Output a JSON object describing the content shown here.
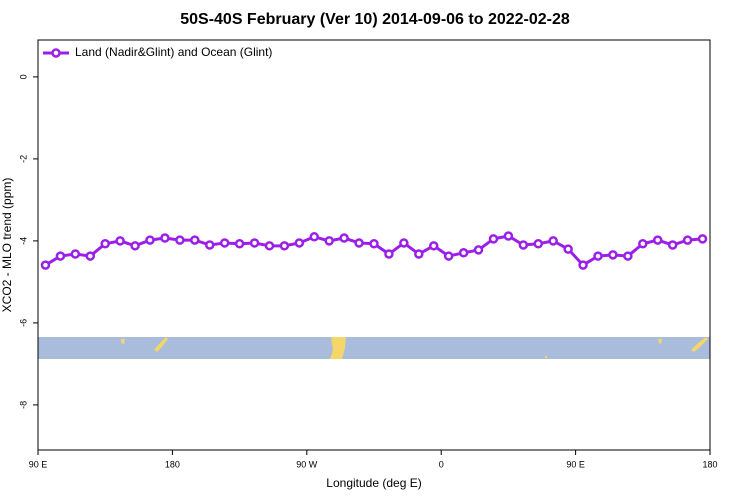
{
  "chart_data": {
    "type": "line",
    "title": "50S-40S February (Ver 10)   2014-09-06 to 2022-02-28",
    "x_label": "Longitude (deg E)",
    "y_label": "XCO2 - MLO trend (ppm)",
    "x": [
      95,
      105,
      115,
      125,
      135,
      145,
      155,
      165,
      175,
      185,
      195,
      205,
      215,
      225,
      235,
      245,
      255,
      265,
      275,
      285,
      295,
      305,
      315,
      325,
      335,
      345,
      355,
      365,
      375,
      385,
      395,
      405,
      415,
      425,
      435,
      445,
      455,
      465,
      475,
      485,
      495,
      505,
      515,
      525,
      535
    ],
    "series": [
      {
        "name": "Land (Nadir&Glint) and Ocean (Glint)",
        "color": "#9b1fe8",
        "values": [
          -4.59,
          -4.37,
          -4.32,
          -4.37,
          -4.07,
          -4.0,
          -4.12,
          -3.98,
          -3.93,
          -3.98,
          -3.98,
          -4.1,
          -4.05,
          -4.07,
          -4.05,
          -4.12,
          -4.12,
          -4.05,
          -3.9,
          -4.0,
          -3.93,
          -4.05,
          -4.07,
          -4.32,
          -4.05,
          -4.32,
          -4.12,
          -4.37,
          -4.29,
          -4.22,
          -3.95,
          -3.88,
          -4.1,
          -4.07,
          -4.0,
          -4.2,
          -4.59,
          -4.37,
          -4.34,
          -4.37,
          -4.07,
          -3.98,
          -4.1,
          -3.98,
          -3.95
        ]
      }
    ],
    "xlim": [
      90,
      540
    ],
    "xticks": [
      {
        "value": 90,
        "label": "90 E"
      },
      {
        "value": 180,
        "label": "180"
      },
      {
        "value": 270,
        "label": "90 W"
      },
      {
        "value": 360,
        "label": "0"
      },
      {
        "value": 450,
        "label": "90 E"
      },
      {
        "value": 540,
        "label": "180"
      }
    ],
    "ylim": [
      -9.1,
      0.9
    ],
    "yticks": [
      0,
      -2,
      -4,
      -6,
      -8
    ],
    "legend": "top-left"
  }
}
